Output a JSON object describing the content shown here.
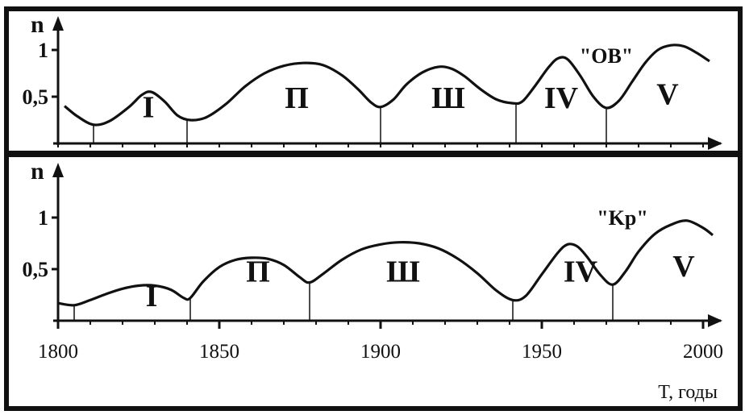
{
  "chart_data": [
    {
      "type": "line",
      "ylabel": "n",
      "yticks": [
        "1",
        "0,5"
      ],
      "ytick_values": [
        1,
        0.5
      ],
      "xlim": [
        1800,
        2002
      ],
      "ylim": [
        0,
        1.15
      ],
      "annotation": "\"OB\"",
      "period_labels": [
        {
          "text": "I",
          "x": 1828,
          "y": 0.28
        },
        {
          "text": "П",
          "x": 1874,
          "y": 0.38
        },
        {
          "text": "Ш",
          "x": 1921,
          "y": 0.38
        },
        {
          "text": "IV",
          "x": 1956,
          "y": 0.38
        },
        {
          "text": "V",
          "x": 1989,
          "y": 0.42
        }
      ],
      "annotation_pos": {
        "x": 1970,
        "y": 0.86
      },
      "boundaries": [
        1811,
        1840,
        1900,
        1942,
        1970
      ],
      "x": [
        1802,
        1806,
        1811,
        1816,
        1822,
        1826,
        1829,
        1833,
        1837,
        1841,
        1846,
        1852,
        1858,
        1864,
        1870,
        1876,
        1882,
        1888,
        1893,
        1897,
        1900,
        1904,
        1908,
        1913,
        1918,
        1922,
        1926,
        1931,
        1936,
        1941,
        1944,
        1948,
        1952,
        1955,
        1958,
        1962,
        1966,
        1970,
        1974,
        1978,
        1982,
        1986,
        1990,
        1994,
        1998,
        2002
      ],
      "y": [
        0.4,
        0.29,
        0.2,
        0.24,
        0.39,
        0.52,
        0.55,
        0.45,
        0.3,
        0.25,
        0.28,
        0.42,
        0.61,
        0.75,
        0.83,
        0.86,
        0.84,
        0.73,
        0.58,
        0.44,
        0.39,
        0.47,
        0.63,
        0.76,
        0.82,
        0.8,
        0.72,
        0.58,
        0.47,
        0.43,
        0.45,
        0.62,
        0.81,
        0.91,
        0.9,
        0.72,
        0.5,
        0.38,
        0.46,
        0.66,
        0.86,
        1.0,
        1.05,
        1.04,
        0.97,
        0.88
      ]
    },
    {
      "type": "line",
      "ylabel": "n",
      "yticks": [
        "1",
        "0,5"
      ],
      "ytick_values": [
        1,
        0.5
      ],
      "xlim": [
        1800,
        2002
      ],
      "ylim": [
        0,
        1.15
      ],
      "xticks": [
        "1800",
        "1850",
        "1900",
        "1950",
        "2000"
      ],
      "xtick_values": [
        1800,
        1850,
        1900,
        1950,
        2000
      ],
      "xlabel": "T, годы",
      "annotation": "\"Kp\"",
      "period_labels": [
        {
          "text": "I",
          "x": 1829,
          "y": 0.14
        },
        {
          "text": "П",
          "x": 1862,
          "y": 0.38
        },
        {
          "text": "Ш",
          "x": 1907,
          "y": 0.38
        },
        {
          "text": "IV",
          "x": 1962,
          "y": 0.38
        },
        {
          "text": "V",
          "x": 1994,
          "y": 0.43
        }
      ],
      "annotation_pos": {
        "x": 1975,
        "y": 0.93
      },
      "boundaries": [
        1805,
        1841,
        1878,
        1941,
        1972
      ],
      "x": [
        1800,
        1805,
        1810,
        1815,
        1820,
        1825,
        1830,
        1835,
        1839,
        1841,
        1845,
        1850,
        1855,
        1860,
        1865,
        1870,
        1875,
        1878,
        1882,
        1888,
        1894,
        1900,
        1906,
        1912,
        1918,
        1924,
        1930,
        1936,
        1941,
        1945,
        1950,
        1955,
        1958,
        1961,
        1964,
        1968,
        1972,
        1976,
        1980,
        1985,
        1990,
        1995,
        2000,
        2003
      ],
      "y": [
        0.17,
        0.15,
        0.2,
        0.26,
        0.31,
        0.34,
        0.34,
        0.3,
        0.22,
        0.22,
        0.38,
        0.52,
        0.59,
        0.61,
        0.6,
        0.54,
        0.42,
        0.37,
        0.45,
        0.59,
        0.69,
        0.74,
        0.76,
        0.75,
        0.7,
        0.6,
        0.46,
        0.29,
        0.2,
        0.24,
        0.45,
        0.66,
        0.74,
        0.72,
        0.62,
        0.45,
        0.35,
        0.48,
        0.67,
        0.84,
        0.93,
        0.97,
        0.9,
        0.83
      ]
    }
  ]
}
